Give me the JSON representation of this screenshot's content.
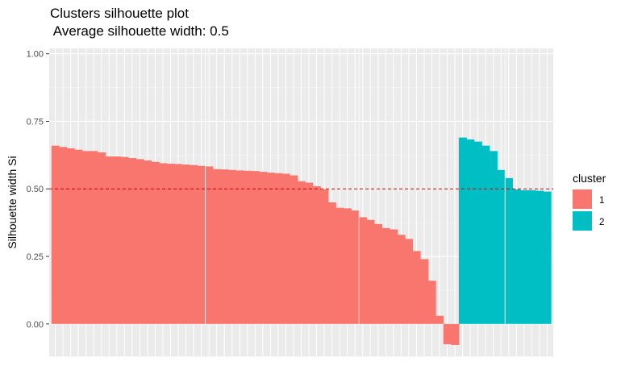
{
  "chart_data": {
    "type": "bar",
    "title": "Clusters silhouette plot",
    "subtitle": " Average silhouette width: 0.5",
    "xlabel": "",
    "ylabel": "Silhouette width Si",
    "ylim": [
      -0.12,
      1.02
    ],
    "yticks": [
      "0.00",
      "0.25",
      "0.50",
      "0.75",
      "1.00"
    ],
    "ytick_values": [
      0,
      0.25,
      0.5,
      0.75,
      1.0
    ],
    "grid": true,
    "average_line": 0.5,
    "legend": {
      "title": "cluster",
      "position": "right"
    },
    "series": [
      {
        "name": "1",
        "color": "#F8766D",
        "values": [
          0.66,
          0.655,
          0.65,
          0.645,
          0.64,
          0.64,
          0.635,
          0.62,
          0.62,
          0.618,
          0.614,
          0.61,
          0.605,
          0.6,
          0.595,
          0.593,
          0.592,
          0.59,
          0.588,
          0.585,
          0.583,
          0.573,
          0.572,
          0.57,
          0.568,
          0.567,
          0.566,
          0.563,
          0.56,
          0.558,
          0.556,
          0.55,
          0.528,
          0.523,
          0.51,
          0.498,
          0.45,
          0.43,
          0.428,
          0.42,
          0.395,
          0.385,
          0.37,
          0.355,
          0.35,
          0.33,
          0.315,
          0.27,
          0.24,
          0.16,
          0.03,
          -0.075,
          -0.078
        ]
      },
      {
        "name": "2",
        "color": "#00BFC4",
        "values": [
          0.69,
          0.683,
          0.675,
          0.66,
          0.64,
          0.57,
          0.54,
          0.498,
          0.495,
          0.495,
          0.493,
          0.49
        ]
      }
    ]
  }
}
